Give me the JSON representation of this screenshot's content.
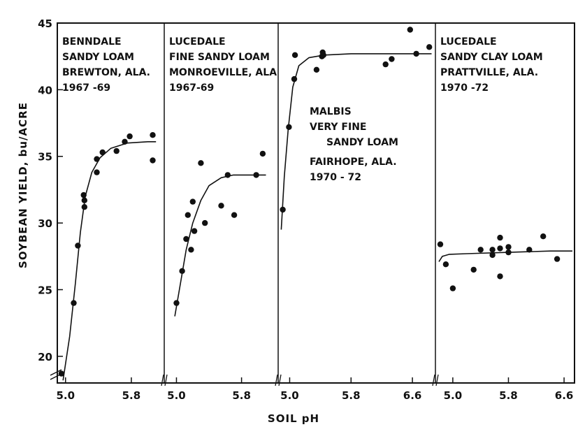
{
  "chart_data": {
    "type": "scatter",
    "xlabel": "SOIL  pH",
    "ylabel": "SOYBEAN  YIELD,  bu/ACRE",
    "ylim": [
      18,
      45
    ],
    "yticks": [
      20,
      25,
      30,
      35,
      40,
      45
    ],
    "grid": false,
    "panels": [
      {
        "label": [
          "BENNDALE",
          "SANDY LOAM",
          "BREWTON, ALA.",
          "1967 -69"
        ],
        "xlim": [
          4.9,
          6.2
        ],
        "xticks": [
          {
            "v": 5.0,
            "t": "5.0"
          },
          {
            "v": 5.8,
            "t": "5.8"
          }
        ],
        "points": [
          [
            4.95,
            18.7
          ],
          [
            5.1,
            24.0
          ],
          [
            5.15,
            28.3
          ],
          [
            5.22,
            32.1
          ],
          [
            5.23,
            31.7
          ],
          [
            5.23,
            31.2
          ],
          [
            5.38,
            33.8
          ],
          [
            5.38,
            34.8
          ],
          [
            5.45,
            35.3
          ],
          [
            5.62,
            35.4
          ],
          [
            5.72,
            36.1
          ],
          [
            5.78,
            36.5
          ],
          [
            6.06,
            36.6
          ],
          [
            6.06,
            34.7
          ]
        ],
        "curve": [
          [
            4.97,
            18.2
          ],
          [
            5.05,
            21.5
          ],
          [
            5.12,
            25.5
          ],
          [
            5.18,
            29.3
          ],
          [
            5.24,
            32.0
          ],
          [
            5.32,
            33.8
          ],
          [
            5.42,
            34.9
          ],
          [
            5.55,
            35.6
          ],
          [
            5.75,
            36.0
          ],
          [
            6.0,
            36.1
          ],
          [
            6.1,
            36.1
          ]
        ]
      },
      {
        "label": [
          "LUCEDALE",
          "FINE SANDY LOAM",
          "MONROEVILLE, ALA",
          "1967-69"
        ],
        "xlim": [
          4.85,
          6.25
        ],
        "xticks": [
          {
            "v": 5.0,
            "t": "5.0"
          },
          {
            "v": 5.8,
            "t": "5.8"
          }
        ],
        "points": [
          [
            5.0,
            24.0
          ],
          [
            5.07,
            26.4
          ],
          [
            5.12,
            28.8
          ],
          [
            5.14,
            30.6
          ],
          [
            5.18,
            28.0
          ],
          [
            5.2,
            31.6
          ],
          [
            5.22,
            29.4
          ],
          [
            5.3,
            34.5
          ],
          [
            5.35,
            30.0
          ],
          [
            5.55,
            31.3
          ],
          [
            5.63,
            33.6
          ],
          [
            5.71,
            30.6
          ],
          [
            5.98,
            33.6
          ],
          [
            6.06,
            35.2
          ]
        ],
        "curve": [
          [
            4.98,
            23.0
          ],
          [
            5.05,
            25.5
          ],
          [
            5.12,
            28.0
          ],
          [
            5.2,
            30.0
          ],
          [
            5.3,
            31.7
          ],
          [
            5.4,
            32.8
          ],
          [
            5.55,
            33.4
          ],
          [
            5.7,
            33.6
          ],
          [
            5.95,
            33.6
          ],
          [
            6.1,
            33.6
          ]
        ]
      },
      {
        "label": [
          "MALBIS",
          "VERY FINE",
          "SANDY LOAM",
          "FAIRHOPE, ALA.",
          "1970 - 72"
        ],
        "xlim": [
          4.85,
          6.9
        ],
        "xticks": [
          {
            "v": 5.0,
            "t": "5.0"
          },
          {
            "v": 5.8,
            "t": "5.8"
          },
          {
            "v": 6.6,
            "t": "6.6"
          }
        ],
        "points": [
          [
            4.91,
            31.0
          ],
          [
            4.99,
            37.2
          ],
          [
            5.06,
            40.8
          ],
          [
            5.07,
            42.6
          ],
          [
            5.35,
            41.5
          ],
          [
            5.42,
            42.5
          ],
          [
            5.43,
            42.8
          ],
          [
            5.44,
            42.6
          ],
          [
            6.25,
            41.9
          ],
          [
            6.33,
            42.3
          ],
          [
            6.57,
            44.5
          ],
          [
            6.65,
            42.7
          ],
          [
            6.82,
            43.2
          ]
        ],
        "curve": [
          [
            4.89,
            29.5
          ],
          [
            4.93,
            33.5
          ],
          [
            4.98,
            37.0
          ],
          [
            5.04,
            40.2
          ],
          [
            5.12,
            41.8
          ],
          [
            5.25,
            42.4
          ],
          [
            5.45,
            42.6
          ],
          [
            5.8,
            42.7
          ],
          [
            6.4,
            42.7
          ],
          [
            6.85,
            42.7
          ]
        ]
      },
      {
        "label": [
          "LUCEDALE",
          "SANDY CLAY LOAM",
          "PRATTVILLE, ALA.",
          "1970 -72"
        ],
        "xlim": [
          4.75,
          6.75
        ],
        "xticks": [
          {
            "v": 5.0,
            "t": "5.0"
          },
          {
            "v": 5.8,
            "t": "5.8"
          },
          {
            "v": 6.6,
            "t": "6.6"
          }
        ],
        "points": [
          [
            4.82,
            28.4
          ],
          [
            4.9,
            26.9
          ],
          [
            5.0,
            25.1
          ],
          [
            5.3,
            26.5
          ],
          [
            5.4,
            28.0
          ],
          [
            5.57,
            28.0
          ],
          [
            5.57,
            27.6
          ],
          [
            5.68,
            28.9
          ],
          [
            5.68,
            28.1
          ],
          [
            5.68,
            26.0
          ],
          [
            5.8,
            28.2
          ],
          [
            5.8,
            27.8
          ],
          [
            6.1,
            28.0
          ],
          [
            6.3,
            29.0
          ],
          [
            6.5,
            27.3
          ]
        ],
        "curve": [
          [
            4.8,
            27.1
          ],
          [
            4.85,
            27.5
          ],
          [
            4.95,
            27.65
          ],
          [
            5.2,
            27.7
          ],
          [
            5.8,
            27.8
          ],
          [
            6.4,
            27.9
          ],
          [
            6.72,
            27.9
          ]
        ]
      }
    ]
  }
}
